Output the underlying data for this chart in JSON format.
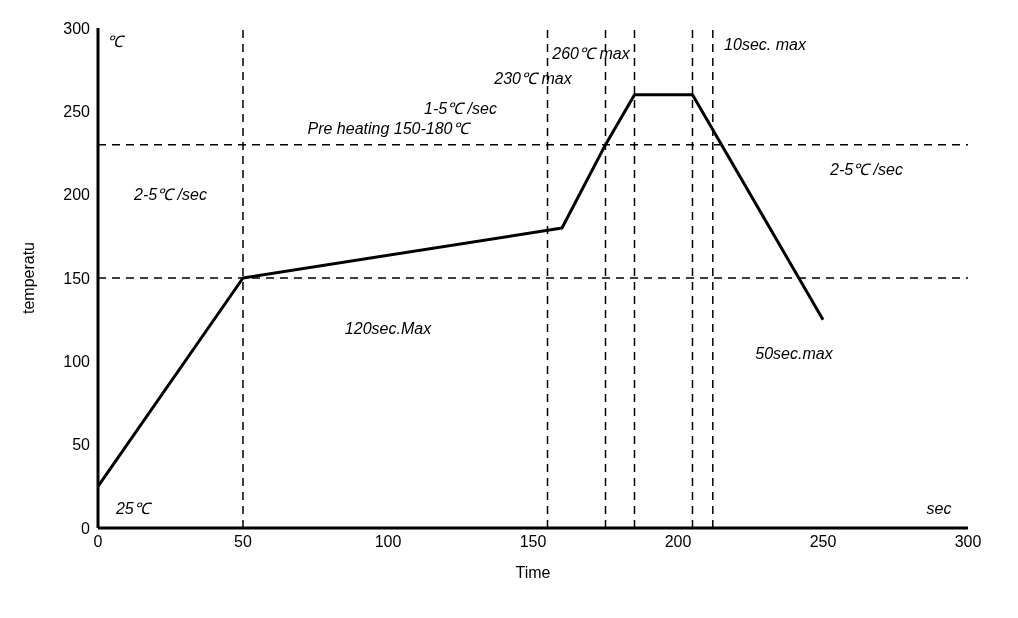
{
  "chart_data": {
    "type": "line",
    "xlabel": "Time",
    "ylabel": "temperatu",
    "x": [
      0,
      50,
      160,
      175,
      185,
      205,
      250
    ],
    "series": [
      {
        "color": "#000000",
        "values": [
          25,
          150,
          180,
          230,
          260,
          260,
          125
        ]
      }
    ],
    "xlim": [
      0,
      300
    ],
    "xticks": [
      0,
      50,
      100,
      150,
      200,
      250,
      300
    ],
    "ylim": [
      0,
      300
    ],
    "yticks": [
      0,
      50,
      100,
      150,
      200,
      250,
      300
    ],
    "marker": "none",
    "line_style": "solid",
    "ref_lines": [
      {
        "axis": "y",
        "value": 230,
        "line_style": "dashed",
        "color": "#000000"
      },
      {
        "axis": "y",
        "value": 150,
        "line_style": "dashed",
        "color": "#000000"
      },
      {
        "axis": "x",
        "value": 50,
        "line_style": "dashed",
        "color": "#000000"
      },
      {
        "axis": "x",
        "value": 155,
        "line_style": "dashed",
        "color": "#000000"
      },
      {
        "axis": "x",
        "value": 175,
        "line_style": "dashed",
        "color": "#000000"
      },
      {
        "axis": "x",
        "value": 185,
        "line_style": "dashed",
        "color": "#000000"
      },
      {
        "axis": "x",
        "value": 205,
        "line_style": "dashed",
        "color": "#000000"
      },
      {
        "axis": "x",
        "value": 212,
        "line_style": "dashed",
        "color": "#000000"
      }
    ],
    "annotations": [
      "260℃ max",
      "230℃ max",
      "1-5℃ /sec",
      "Pre heating 150-180℃",
      "2-5℃ /sec",
      "2-5℃ /sec",
      "10sec. max",
      "120sec.Max",
      "50sec.max",
      "25℃",
      "℃",
      "sec"
    ]
  }
}
